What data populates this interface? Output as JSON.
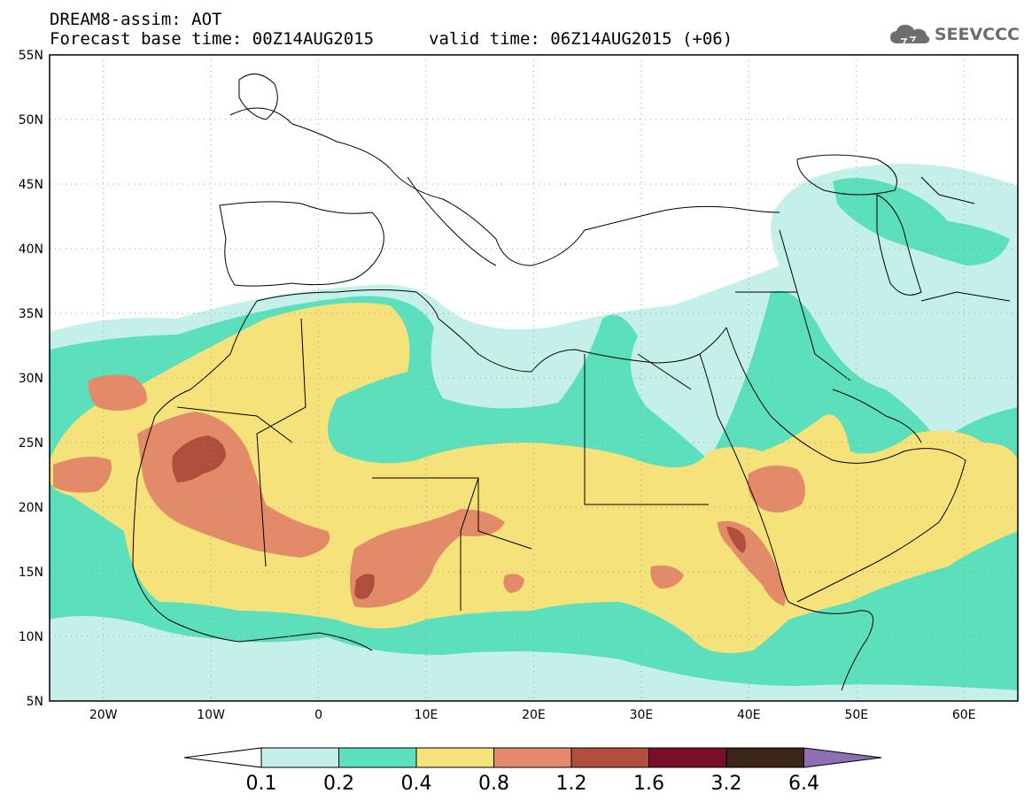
{
  "header": {
    "line1": "DREAM8-assim: AOT",
    "forecast_base": "Forecast base time: 00Z14AUG2015",
    "valid_time": "valid time: 06Z14AUG2015 (+06)"
  },
  "logo": {
    "text": "SEEVCCC",
    "icon": "cloud-icon"
  },
  "map": {
    "variable": "AOT",
    "lon_range": [
      -25,
      65
    ],
    "lat_range": [
      5,
      55
    ],
    "lat_ticks": [
      "55N",
      "50N",
      "45N",
      "40N",
      "35N",
      "30N",
      "25N",
      "20N",
      "15N",
      "10N",
      "5N"
    ],
    "lon_ticks": [
      "20W",
      "10W",
      "0",
      "10E",
      "20E",
      "30E",
      "40E",
      "50E",
      "60E"
    ],
    "grid": "dotted"
  },
  "colorbar": {
    "labels": [
      "0.1",
      "0.2",
      "0.4",
      "0.8",
      "1.2",
      "1.6",
      "3.2",
      "6.4"
    ],
    "colors": [
      "#ffffff",
      "#c5f0ea",
      "#5ce0bb",
      "#f5e27a",
      "#e38a69",
      "#b04e3e",
      "#7a0f2b",
      "#3b2519",
      "#8e6fb3"
    ]
  }
}
